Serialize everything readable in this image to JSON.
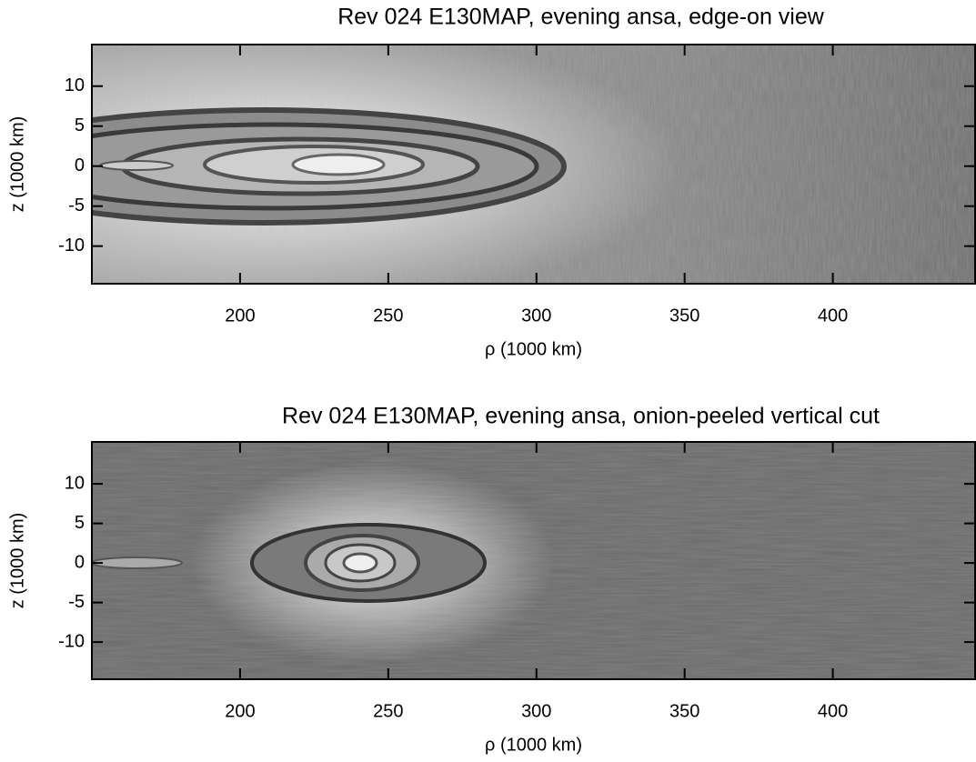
{
  "chart_data": [
    {
      "type": "image",
      "title": "Rev 024 E130MAP, evening ansa, edge-on view",
      "xlabel": "ρ (1000 km)",
      "ylabel": "z (1000 km)",
      "xlim": [
        150,
        448
      ],
      "ylim": [
        -14.7,
        15.2
      ],
      "xticks": [
        200,
        250,
        300,
        350,
        400
      ],
      "yticks": [
        10,
        5,
        0,
        -5,
        -10
      ]
    },
    {
      "type": "image",
      "title": "Rev 024 E130MAP, evening ansa, onion-peeled vertical cut",
      "xlabel": "ρ (1000 km)",
      "ylabel": "z (1000 km)",
      "xlim": [
        150,
        448
      ],
      "ylim": [
        -14.7,
        15.3
      ],
      "xticks": [
        200,
        250,
        300,
        350,
        400
      ],
      "yticks": [
        10,
        5,
        0,
        -5,
        -10
      ]
    }
  ]
}
